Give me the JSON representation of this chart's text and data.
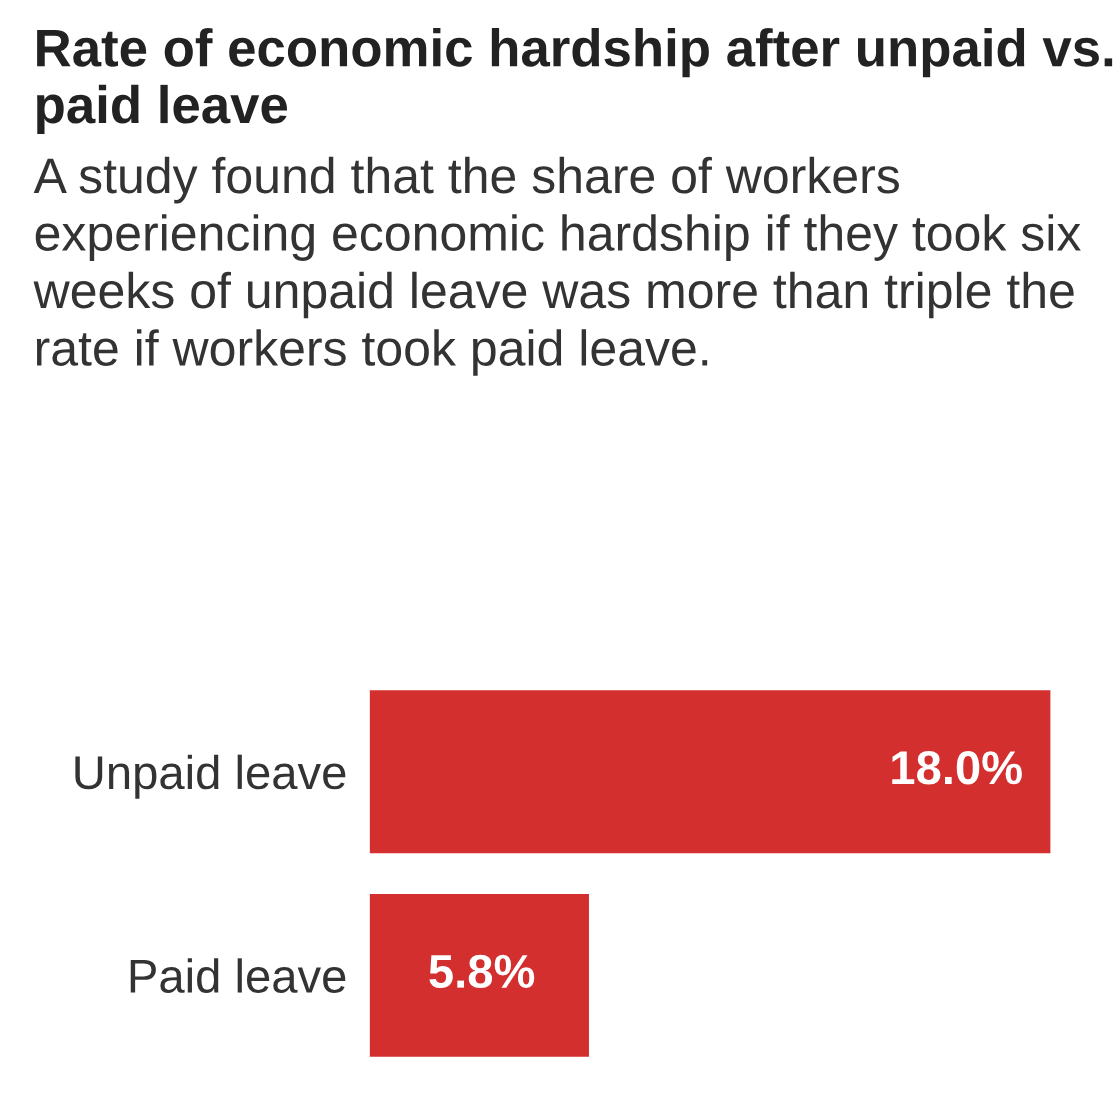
{
  "chart_data": {
    "type": "bar",
    "orientation": "horizontal",
    "title": "Rate of economic hardship after unpaid vs. paid leave",
    "subtitle": "A study found that the share of workers experiencing economic hardship if they took six weeks of unpaid leave was more than triple the rate if workers took paid leave.",
    "categories": [
      "Unpaid leave",
      "Paid leave"
    ],
    "values": [
      18.0,
      5.8
    ],
    "value_labels": [
      "18.0%",
      "5.8%"
    ],
    "color": "#d32f2f",
    "grid": false,
    "legend": false
  }
}
